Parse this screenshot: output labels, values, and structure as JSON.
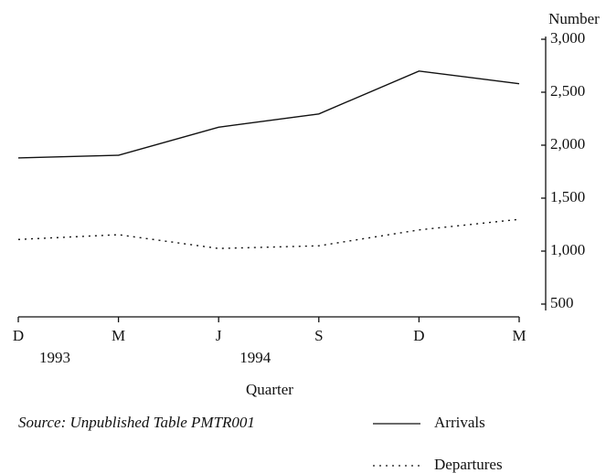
{
  "chart_data": {
    "type": "line",
    "y_axis_label": "Number",
    "x_axis_label": "Quarter",
    "source": "Source:  Unpublished Table PMTR001",
    "categories": [
      "D",
      "M",
      "J",
      "S",
      "D",
      "M"
    ],
    "year_labels": [
      "1993",
      null,
      "1994",
      null,
      null,
      null
    ],
    "series": [
      {
        "name": "Arrivals",
        "color": "#111111",
        "style": "solid",
        "values": [
          1880,
          1905,
          2170,
          2295,
          2700,
          2580
        ]
      },
      {
        "name": "Departures",
        "color": "#111111",
        "style": "dotted",
        "values": [
          1110,
          1155,
          1025,
          1050,
          1200,
          1300
        ]
      }
    ],
    "ylim": [
      500,
      3000
    ],
    "yticks": [
      500,
      {
        "value": 1000,
        "label": "1,000"
      },
      {
        "value": 1500,
        "label": "1,500"
      },
      {
        "value": 2000,
        "label": "2,000"
      },
      {
        "value": 2500,
        "label": "2,500"
      },
      {
        "value": 3000,
        "label": "3,000"
      }
    ],
    "y_axis_side": "right",
    "grid": false
  }
}
